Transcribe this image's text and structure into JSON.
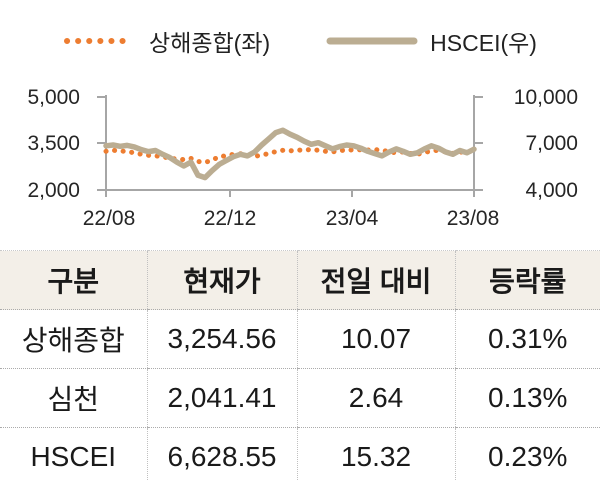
{
  "chart_data": {
    "type": "line",
    "title": "",
    "x_axis": {
      "tick_labels": [
        "22/08",
        "22/12",
        "23/04",
        "23/08"
      ],
      "months_range": [
        0,
        12
      ],
      "tick_positions_months": [
        0,
        4,
        8,
        12
      ]
    },
    "left_axis": {
      "tick_labels": [
        "5,000",
        "3,500",
        "2,000"
      ],
      "tick_values": [
        5000,
        3500,
        2000
      ],
      "range": [
        2000,
        5000
      ]
    },
    "right_axis": {
      "tick_labels": [
        "10,000",
        "7,000",
        "4,000"
      ],
      "tick_values": [
        10000,
        7000,
        4000
      ],
      "range": [
        4000,
        10000
      ]
    },
    "grid": false,
    "legend_position": "top",
    "series": [
      {
        "name": "상해종합(좌)",
        "axis": "left",
        "style": "dotted",
        "color": "#ED7D31",
        "values": [
          3250,
          3280,
          3260,
          3240,
          3200,
          3150,
          3120,
          3100,
          3080,
          3020,
          3000,
          2980,
          3020,
          2920,
          2890,
          2960,
          3080,
          3100,
          3150,
          3170,
          3130,
          3090,
          3120,
          3180,
          3240,
          3280,
          3260,
          3290,
          3280,
          3310,
          3280,
          3250,
          3230,
          3270,
          3290,
          3290,
          3300,
          3290,
          3300,
          3290,
          3230,
          3200,
          3230,
          3180,
          3150,
          3210,
          3260,
          3280,
          3230,
          3180,
          3220,
          3240,
          3255
        ]
      },
      {
        "name": "HSCEI(우)",
        "axis": "right",
        "style": "solid",
        "color": "#BBAD92",
        "values": [
          6850,
          6900,
          6820,
          6880,
          6780,
          6600,
          6480,
          6550,
          6300,
          6100,
          5800,
          5550,
          5800,
          4950,
          4800,
          5250,
          5650,
          5900,
          6150,
          6300,
          6200,
          6450,
          6900,
          7300,
          7700,
          7850,
          7600,
          7400,
          7150,
          6950,
          7050,
          6850,
          6650,
          6800,
          6900,
          6850,
          6700,
          6500,
          6350,
          6200,
          6450,
          6650,
          6500,
          6300,
          6400,
          6650,
          6850,
          6700,
          6450,
          6300,
          6550,
          6400,
          6630
        ]
      }
    ]
  },
  "table": {
    "headers": [
      "구분",
      "현재가",
      "전일 대비",
      "등락률"
    ],
    "rows": [
      [
        "상해종합",
        "3,254.56",
        "10.07",
        "0.31%"
      ],
      [
        "심천",
        "2,041.41",
        "2.64",
        "0.13%"
      ],
      [
        "HSCEI",
        "6,628.55",
        "15.32",
        "0.23%"
      ]
    ]
  },
  "colors": {
    "accent_orange": "#ED7D31",
    "accent_tan": "#BBAD92",
    "axis_gray": "#A6A6A6",
    "table_header_bg": "#F3EFE8"
  }
}
